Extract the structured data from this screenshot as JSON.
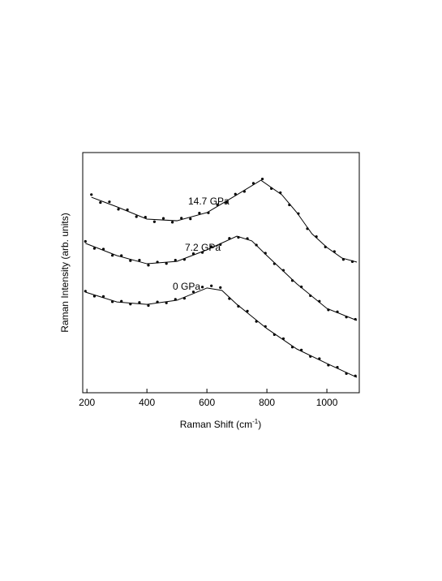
{
  "chart_data": {
    "type": "scatter",
    "xlabel": {
      "text": "Raman Shift (cm",
      "sup": "-1",
      "end": ")"
    },
    "ylabel": "Raman Intensity (arb. units)",
    "xlim": [
      186,
      1108
    ],
    "xticks": [
      200,
      400,
      600,
      800,
      1000
    ],
    "ylim": [
      0,
      10
    ],
    "series": [
      {
        "name": "14.7 GPa",
        "color": "#000000",
        "x": [
          215,
          245,
          275,
          305,
          335,
          365,
          395,
          425,
          455,
          485,
          515,
          545,
          575,
          605,
          635,
          665,
          695,
          725,
          755,
          785,
          815,
          845,
          875,
          905,
          935,
          965,
          995,
          1025,
          1055,
          1085
        ],
        "values": [
          8.25,
          7.92,
          7.95,
          7.64,
          7.62,
          7.33,
          7.31,
          7.12,
          7.26,
          7.1,
          7.27,
          7.24,
          7.48,
          7.49,
          7.83,
          7.93,
          8.27,
          8.38,
          8.72,
          8.9,
          8.5,
          8.33,
          7.82,
          7.46,
          6.83,
          6.5,
          6.07,
          5.88,
          5.55,
          5.46
        ],
        "fit": {
          "x": [
            215,
            300,
            400,
            500,
            600,
            700,
            780,
            850,
            900,
            950,
            1000,
            1050,
            1100
          ],
          "values": [
            8.14,
            7.74,
            7.23,
            7.16,
            7.5,
            8.24,
            8.85,
            8.24,
            7.5,
            6.62,
            6.05,
            5.61,
            5.44
          ]
        }
      },
      {
        "name": "7.2 GPa",
        "color": "#000000",
        "x": [
          195,
          225,
          255,
          285,
          315,
          345,
          375,
          405,
          435,
          465,
          495,
          525,
          555,
          585,
          615,
          645,
          675,
          705,
          735,
          765,
          795,
          825,
          855,
          885,
          915,
          945,
          975,
          1005,
          1035,
          1065,
          1095
        ],
        "values": [
          6.3,
          6.01,
          5.98,
          5.72,
          5.71,
          5.5,
          5.52,
          5.31,
          5.44,
          5.38,
          5.52,
          5.55,
          5.79,
          5.84,
          6.08,
          6.17,
          6.43,
          6.47,
          6.42,
          6.15,
          5.81,
          5.37,
          5.1,
          4.67,
          4.41,
          4.04,
          3.81,
          3.45,
          3.37,
          3.15,
          3.06
        ],
        "fit": {
          "x": [
            195,
            300,
            400,
            500,
            600,
            700,
            750,
            800,
            900,
            1000,
            1100
          ],
          "values": [
            6.22,
            5.71,
            5.37,
            5.47,
            5.95,
            6.52,
            6.32,
            5.71,
            4.53,
            3.51,
            3.01
          ]
        }
      },
      {
        "name": "0 GPa",
        "color": "#000000",
        "x": [
          195,
          225,
          255,
          285,
          315,
          345,
          375,
          405,
          435,
          465,
          495,
          525,
          555,
          585,
          615,
          645,
          675,
          705,
          735,
          765,
          795,
          825,
          855,
          885,
          915,
          945,
          975,
          1005,
          1035,
          1065,
          1095
        ],
        "values": [
          4.23,
          4.02,
          4.01,
          3.79,
          3.81,
          3.69,
          3.76,
          3.63,
          3.78,
          3.74,
          3.89,
          3.93,
          4.2,
          4.4,
          4.45,
          4.38,
          3.92,
          3.6,
          3.4,
          2.97,
          2.76,
          2.42,
          2.25,
          1.9,
          1.78,
          1.51,
          1.42,
          1.15,
          1.06,
          0.8,
          0.7
        ],
        "fit": {
          "x": [
            195,
            300,
            400,
            500,
            600,
            650,
            700,
            800,
            900,
            1000,
            1100
          ],
          "values": [
            4.19,
            3.78,
            3.68,
            3.85,
            4.36,
            4.26,
            3.68,
            2.67,
            1.82,
            1.22,
            0.64
          ]
        }
      }
    ]
  }
}
